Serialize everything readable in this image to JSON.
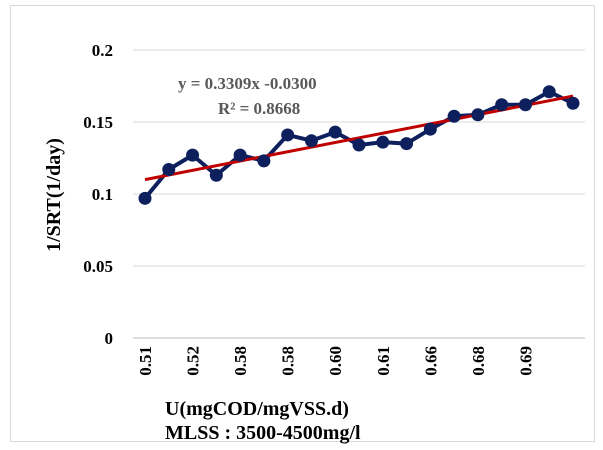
{
  "chart_data": {
    "type": "scatter",
    "xlabel": "U(mgCOD/mgVSS.d)",
    "subtitle": "MLSS : 3500-4500mg/l",
    "ylabel": "1/SRT(1/day)",
    "ylim": [
      0,
      0.2
    ],
    "yticks": [
      "0",
      "0.05",
      "0.1",
      "0.15",
      "0.2"
    ],
    "x_tick_labels": [
      "0.51",
      "0.52",
      "0.58",
      "0.58",
      "0.60",
      "0.61",
      "0.66",
      "0.68",
      "0.69"
    ],
    "series": [
      {
        "color": "#0d1f5c",
        "values": [
          0.097,
          0.117,
          0.127,
          0.113,
          0.127,
          0.123,
          0.141,
          0.137,
          0.143,
          0.134,
          0.136,
          0.135,
          0.145,
          0.154,
          0.155,
          0.162,
          0.162,
          0.171,
          0.163
        ]
      }
    ],
    "trendline": {
      "color": "#c00000",
      "start": 0.11,
      "end": 0.168,
      "equation": "y = 0.3309x -0.0300",
      "r_squared": "R² = 0.8668"
    },
    "grid": "horizontal"
  }
}
